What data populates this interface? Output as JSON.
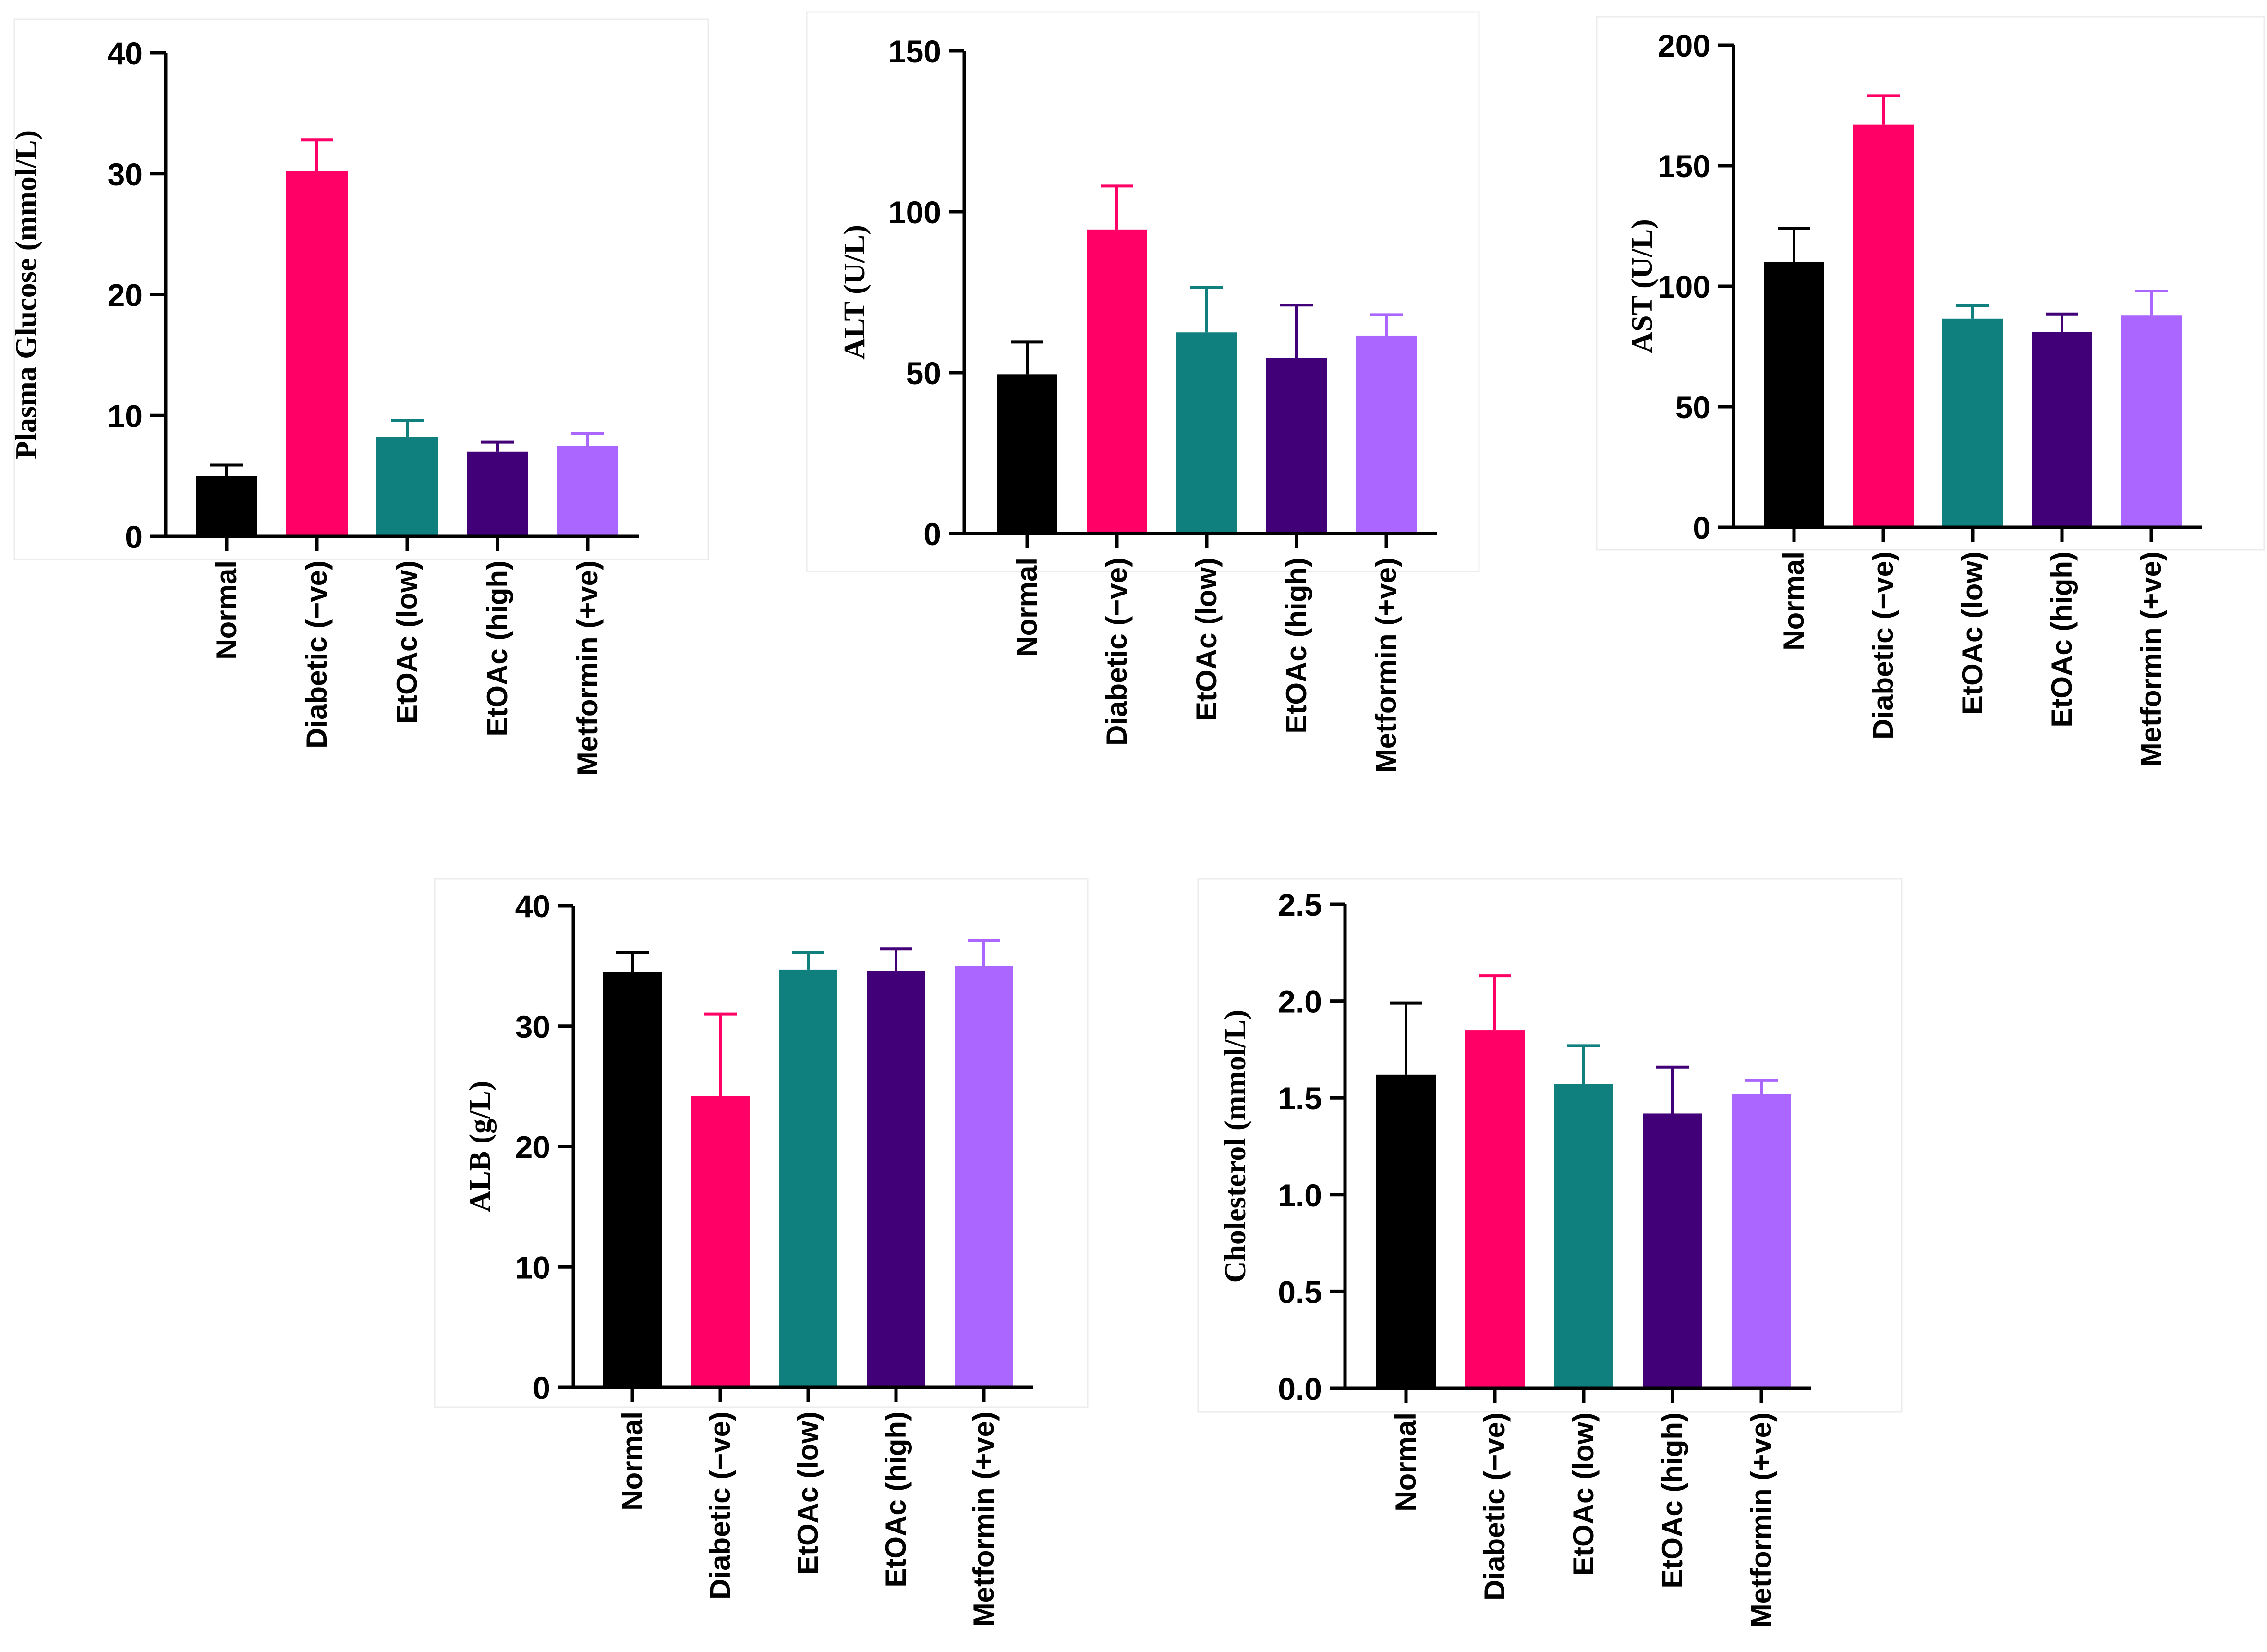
{
  "group_colors": [
    "#000000",
    "#FF0066",
    "#10807E",
    "#420078",
    "#AA66FF"
  ],
  "chart_data": [
    {
      "type": "bar",
      "ylabel": "Plasma Glucose (mmol/L)",
      "categories": [
        "Normal",
        "Diabetic (−ve)",
        "EtOAc (low)",
        "EtOAc (high)",
        "Metformin (+ve)"
      ],
      "values": [
        5.0,
        30.2,
        8.2,
        7.0,
        7.5
      ],
      "errors": [
        0.9,
        2.6,
        1.4,
        0.8,
        1.0
      ],
      "ylim": [
        0,
        40
      ],
      "yticks": [
        0,
        10,
        20,
        30,
        40
      ],
      "grid": false
    },
    {
      "type": "bar",
      "ylabel": "ALT (U/L)",
      "categories": [
        "Normal",
        "Diabetic (−ve)",
        "EtOAc (low)",
        "EtOAc (high)",
        "Metformin (+ve)"
      ],
      "values": [
        49.5,
        94.5,
        62.5,
        54.5,
        61.5
      ],
      "errors": [
        10.0,
        13.5,
        14.0,
        16.5,
        6.5
      ],
      "ylim": [
        0,
        150
      ],
      "yticks": [
        0,
        50,
        100,
        150
      ],
      "grid": false
    },
    {
      "type": "bar",
      "ylabel": "AST (U/L)",
      "categories": [
        "Normal",
        "Diabetic (−ve)",
        "EtOAc (low)",
        "EtOAc (high)",
        "Metformin (+ve)"
      ],
      "values": [
        110,
        167,
        86.5,
        81,
        88
      ],
      "errors": [
        14,
        12,
        5.5,
        7.5,
        10
      ],
      "ylim": [
        0,
        200
      ],
      "yticks": [
        0,
        50,
        100,
        150,
        200
      ],
      "grid": false
    },
    {
      "type": "bar",
      "ylabel": "ALB (g/L)",
      "categories": [
        "Normal",
        "Diabetic (−ve)",
        "EtOAc (low)",
        "EtOAc (high)",
        "Metformin (+ve)"
      ],
      "values": [
        34.5,
        24.2,
        34.7,
        34.6,
        35.0
      ],
      "errors": [
        1.6,
        6.8,
        1.4,
        1.8,
        2.1
      ],
      "ylim": [
        0,
        40
      ],
      "yticks": [
        0,
        10,
        20,
        30,
        40
      ],
      "grid": false
    },
    {
      "type": "bar",
      "ylabel": "Cholesterol (mmol/L)",
      "categories": [
        "Normal",
        "Diabetic (−ve)",
        "EtOAc (low)",
        "EtOAc (high)",
        "Metformin (+ve)"
      ],
      "values": [
        1.62,
        1.85,
        1.57,
        1.42,
        1.52
      ],
      "errors": [
        0.37,
        0.28,
        0.2,
        0.24,
        0.07
      ],
      "ylim": [
        0,
        2.5
      ],
      "yticks": [
        0.0,
        0.5,
        1.0,
        1.5,
        2.0,
        2.5
      ],
      "tick_decimals": 1,
      "grid": false
    }
  ]
}
